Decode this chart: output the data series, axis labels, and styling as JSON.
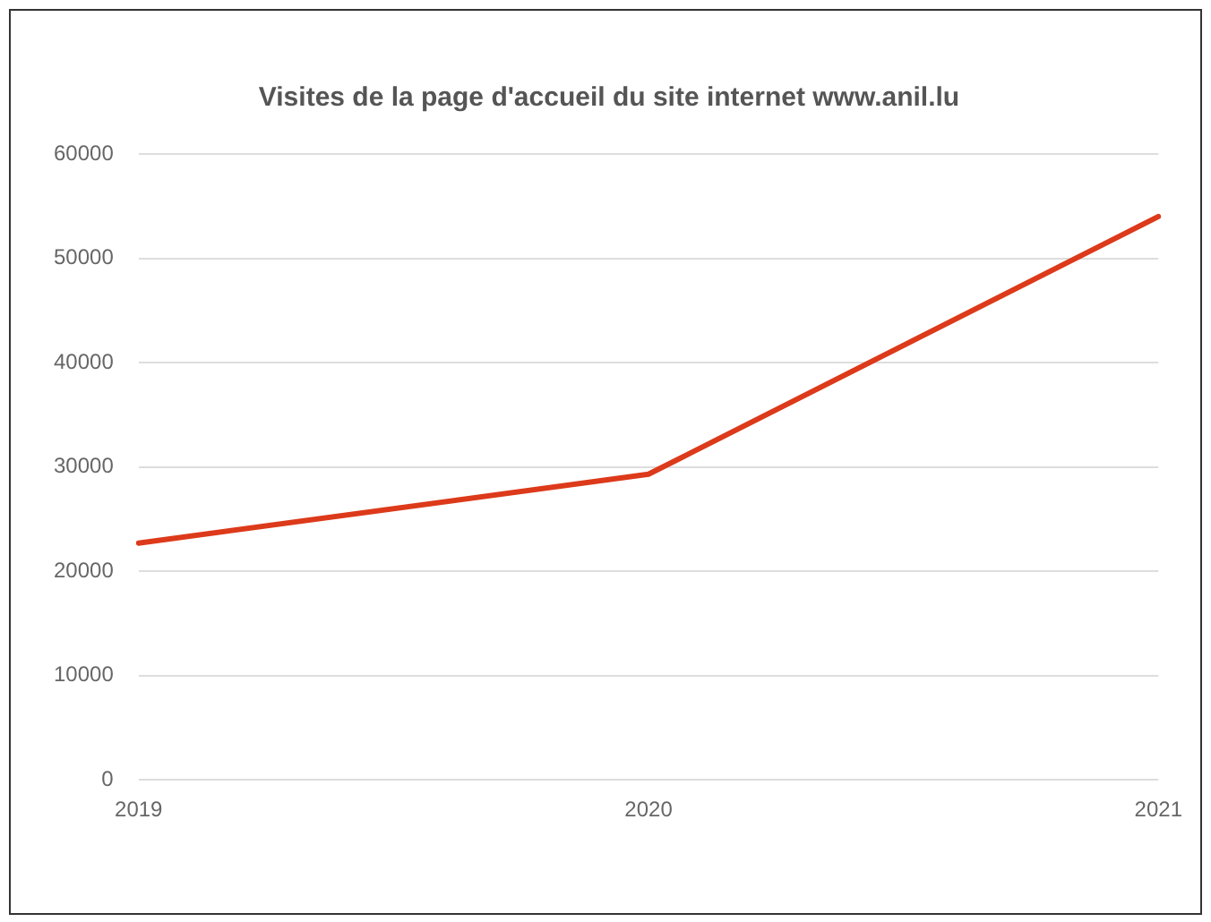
{
  "chart_data": {
    "type": "line",
    "title": "Visites de la page d'accueil du site internet www.anil.lu",
    "categories": [
      "2019",
      "2020",
      "2021"
    ],
    "series": [
      {
        "color": "#dc3a1a",
        "values": [
          22700,
          29300,
          54000
        ]
      }
    ],
    "ylim": [
      0,
      60000
    ],
    "yticks": [
      0,
      10000,
      20000,
      30000,
      40000,
      50000,
      60000
    ],
    "grid": "y",
    "legend": false,
    "marker": "none"
  }
}
